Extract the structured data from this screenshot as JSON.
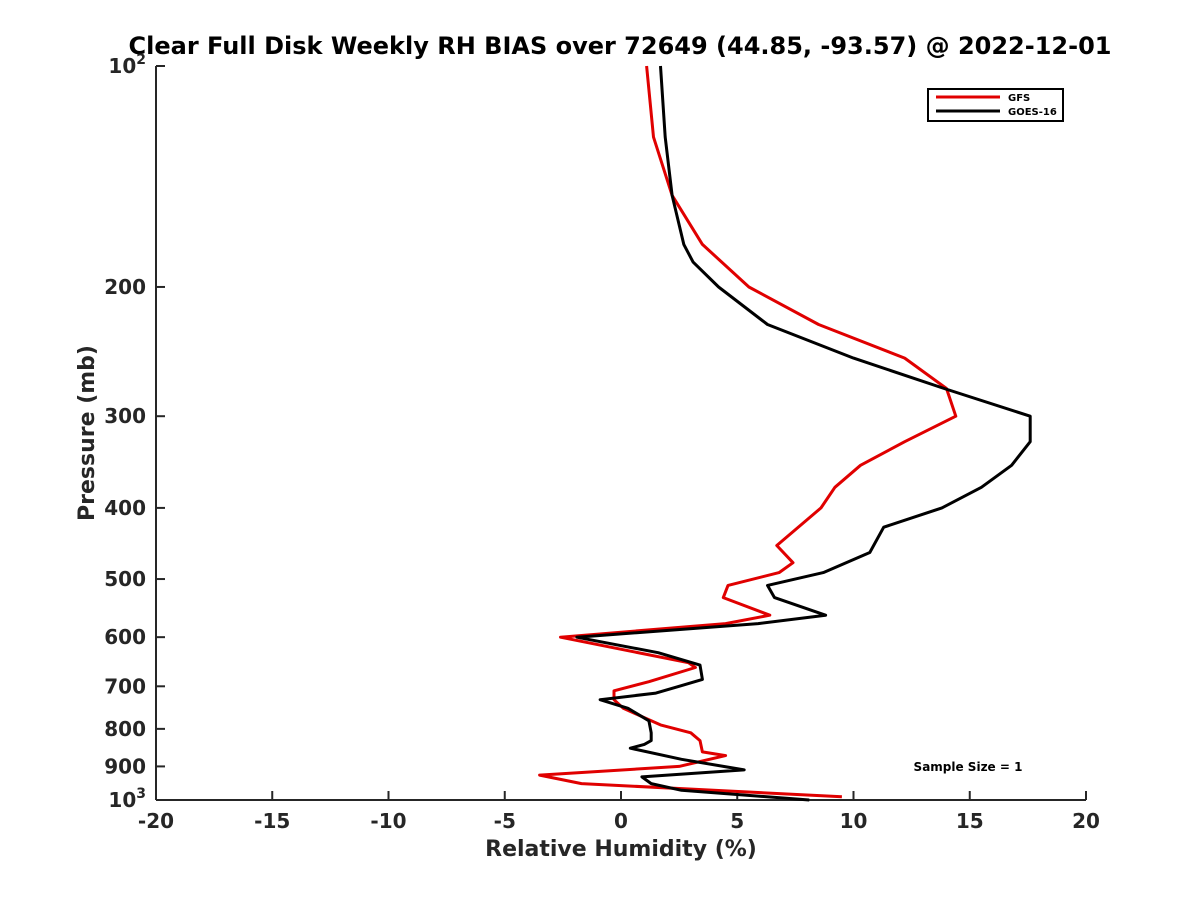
{
  "chart_data": {
    "type": "line",
    "title": "Clear Full Disk Weekly RH BIAS over 72649 (44.85, -93.57) @ 2022-12-01",
    "xlabel": "Relative Humidity (%)",
    "ylabel": "Pressure (mb)",
    "xlim": [
      -20,
      20
    ],
    "ylim": [
      1000,
      100
    ],
    "y_scale": "log",
    "y_reversed": true,
    "grid": false,
    "legend_position": "top-right",
    "x_ticks": [
      -20,
      -15,
      -10,
      -5,
      0,
      5,
      10,
      15,
      20
    ],
    "x_tick_labels": [
      "-20",
      "-15",
      "-10",
      "-5",
      "0",
      "5",
      "10",
      "15",
      "20"
    ],
    "y_ticks": [
      {
        "value": 100,
        "base": "10",
        "exp": "2"
      },
      {
        "value": 200,
        "label": "200"
      },
      {
        "value": 300,
        "label": "300"
      },
      {
        "value": 400,
        "label": "400"
      },
      {
        "value": 500,
        "label": "500"
      },
      {
        "value": 600,
        "label": "600"
      },
      {
        "value": 700,
        "label": "700"
      },
      {
        "value": 800,
        "label": "800"
      },
      {
        "value": 900,
        "label": "900"
      },
      {
        "value": 1000,
        "base": "10",
        "exp": "3"
      }
    ],
    "annotation": "Sample Size = 1",
    "series": [
      {
        "name": "GFS",
        "color": "#e00000",
        "points": [
          [
            1.1,
            100
          ],
          [
            1.4,
            125
          ],
          [
            2.2,
            150
          ],
          [
            3.5,
            175
          ],
          [
            5.5,
            200
          ],
          [
            8.5,
            225
          ],
          [
            12.2,
            250
          ],
          [
            14.0,
            275
          ],
          [
            14.4,
            300
          ],
          [
            12.2,
            325
          ],
          [
            10.3,
            350
          ],
          [
            9.2,
            375
          ],
          [
            8.6,
            400
          ],
          [
            6.7,
            450
          ],
          [
            7.4,
            475
          ],
          [
            6.8,
            490
          ],
          [
            4.6,
            510
          ],
          [
            4.4,
            530
          ],
          [
            6.4,
            560
          ],
          [
            4.5,
            575
          ],
          [
            -2.6,
            600
          ],
          [
            2.9,
            650
          ],
          [
            3.2,
            660
          ],
          [
            1.2,
            690
          ],
          [
            -0.3,
            710
          ],
          [
            -0.3,
            730
          ],
          [
            0.1,
            750
          ],
          [
            1.7,
            790
          ],
          [
            3.0,
            810
          ],
          [
            3.4,
            830
          ],
          [
            3.5,
            860
          ],
          [
            4.5,
            870
          ],
          [
            2.5,
            900
          ],
          [
            -3.5,
            925
          ],
          [
            -1.7,
            950
          ],
          [
            9.5,
            990
          ]
        ]
      },
      {
        "name": "GOES-16",
        "color": "#000000",
        "points": [
          [
            1.7,
            100
          ],
          [
            1.9,
            125
          ],
          [
            2.2,
            150
          ],
          [
            2.7,
            175
          ],
          [
            3.1,
            185
          ],
          [
            4.2,
            200
          ],
          [
            6.3,
            225
          ],
          [
            10.0,
            250
          ],
          [
            13.9,
            275
          ],
          [
            17.6,
            300
          ],
          [
            17.6,
            325
          ],
          [
            16.8,
            350
          ],
          [
            15.5,
            375
          ],
          [
            13.8,
            400
          ],
          [
            11.3,
            425
          ],
          [
            10.7,
            460
          ],
          [
            8.7,
            490
          ],
          [
            6.3,
            510
          ],
          [
            6.6,
            530
          ],
          [
            8.8,
            560
          ],
          [
            5.9,
            575
          ],
          [
            -1.9,
            600
          ],
          [
            1.6,
            630
          ],
          [
            3.4,
            655
          ],
          [
            3.5,
            685
          ],
          [
            2.5,
            700
          ],
          [
            1.5,
            715
          ],
          [
            -0.9,
            730
          ],
          [
            0.3,
            750
          ],
          [
            1.2,
            780
          ],
          [
            1.3,
            810
          ],
          [
            1.3,
            830
          ],
          [
            1.0,
            840
          ],
          [
            0.4,
            850
          ],
          [
            2.6,
            880
          ],
          [
            5.3,
            910
          ],
          [
            0.9,
            930
          ],
          [
            1.3,
            950
          ],
          [
            2.6,
            970
          ],
          [
            8.1,
            1000
          ]
        ]
      }
    ]
  }
}
